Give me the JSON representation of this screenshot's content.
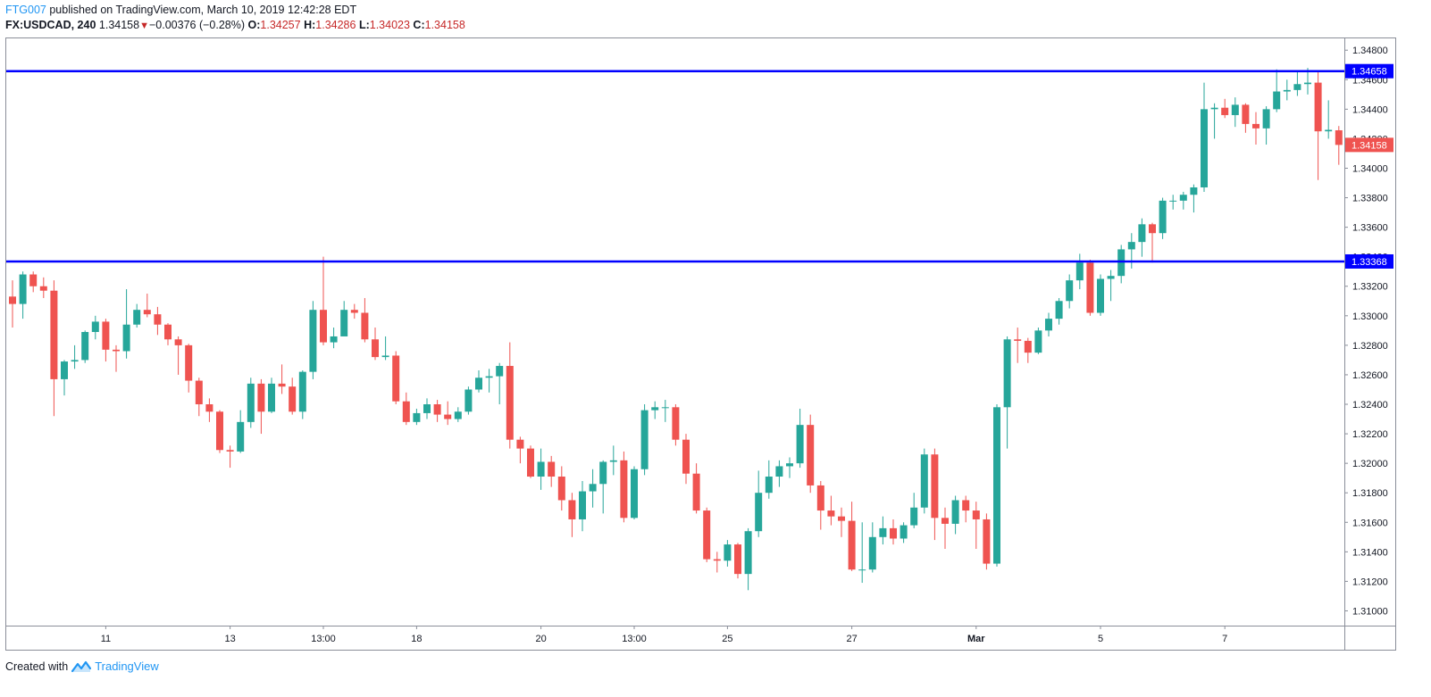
{
  "header": {
    "author": "FTG007",
    "published_text": "published on TradingView.com, March 10, 2019 12:42:28 EDT",
    "symbol": "FX:USDCAD, 240",
    "last": "1.34158",
    "change": "−0.00376 (−0.28%)",
    "o_label": "O:",
    "o_value": "1.34257",
    "h_label": "H:",
    "h_value": "1.34286",
    "l_label": "L:",
    "l_value": "1.34023",
    "c_label": "C:",
    "c_value": "1.34158"
  },
  "footer": {
    "created_text": "Created with",
    "brand": "TradingView"
  },
  "colors": {
    "up": "#26a69a",
    "down": "#ef5350",
    "level_line": "#0000ff",
    "text": "#131722"
  },
  "chart_data": {
    "type": "candlestick",
    "symbol": "FX:USDCAD",
    "interval": "240",
    "ylim": [
      1.309,
      1.3488
    ],
    "y_ticks": [
      "1.34800",
      "1.34600",
      "1.34400",
      "1.34200",
      "1.34000",
      "1.33800",
      "1.33600",
      "1.33400",
      "1.33200",
      "1.33000",
      "1.32800",
      "1.32600",
      "1.32400",
      "1.32200",
      "1.32000",
      "1.31800",
      "1.31600",
      "1.31400",
      "1.31200",
      "1.31000"
    ],
    "x_ticks": [
      {
        "label": "11",
        "index": 9
      },
      {
        "label": "13",
        "index": 21
      },
      {
        "label": "13:00",
        "index": 30
      },
      {
        "label": "18",
        "index": 39
      },
      {
        "label": "20",
        "index": 51
      },
      {
        "label": "13:00",
        "index": 60
      },
      {
        "label": "25",
        "index": 69
      },
      {
        "label": "27",
        "index": 81
      },
      {
        "label": "Mar",
        "index": 93,
        "bold": true
      },
      {
        "label": "5",
        "index": 105
      },
      {
        "label": "7",
        "index": 117
      }
    ],
    "horizontal_levels": [
      {
        "value": 1.34658,
        "label": "1.34658"
      },
      {
        "value": 1.33368,
        "label": "1.33368"
      }
    ],
    "last_price": {
      "value": 1.34158,
      "label": "1.34158"
    },
    "candles": [
      [
        1.3313,
        1.3308,
        1.3324,
        1.3292
      ],
      [
        1.3308,
        1.3328,
        1.333,
        1.3298
      ],
      [
        1.3328,
        1.332,
        1.333,
        1.3316
      ],
      [
        1.332,
        1.3317,
        1.3326,
        1.3312
      ],
      [
        1.3317,
        1.3257,
        1.3324,
        1.3232
      ],
      [
        1.3257,
        1.3269,
        1.327,
        1.3246
      ],
      [
        1.3269,
        1.327,
        1.328,
        1.3264
      ],
      [
        1.327,
        1.3289,
        1.329,
        1.3268
      ],
      [
        1.3289,
        1.3296,
        1.33,
        1.3284
      ],
      [
        1.3296,
        1.3277,
        1.3298,
        1.3269
      ],
      [
        1.3277,
        1.3276,
        1.328,
        1.3262
      ],
      [
        1.3276,
        1.3294,
        1.3318,
        1.3271
      ],
      [
        1.3294,
        1.3304,
        1.3308,
        1.3292
      ],
      [
        1.3304,
        1.3301,
        1.3315,
        1.3299
      ],
      [
        1.3301,
        1.3294,
        1.3306,
        1.3287
      ],
      [
        1.3294,
        1.3284,
        1.3295,
        1.328
      ],
      [
        1.3284,
        1.328,
        1.3286,
        1.326
      ],
      [
        1.328,
        1.3256,
        1.3281,
        1.3248
      ],
      [
        1.3256,
        1.324,
        1.3258,
        1.3232
      ],
      [
        1.324,
        1.3235,
        1.3244,
        1.3228
      ],
      [
        1.3235,
        1.3209,
        1.3236,
        1.3207
      ],
      [
        1.3209,
        1.3208,
        1.3212,
        1.3197
      ],
      [
        1.3208,
        1.3228,
        1.3236,
        1.3207
      ],
      [
        1.3228,
        1.3254,
        1.3258,
        1.3224
      ],
      [
        1.3254,
        1.3235,
        1.3257,
        1.322
      ],
      [
        1.3235,
        1.3254,
        1.3258,
        1.3234
      ],
      [
        1.3254,
        1.3252,
        1.3267,
        1.3247
      ],
      [
        1.3252,
        1.3235,
        1.3258,
        1.3233
      ],
      [
        1.3235,
        1.3262,
        1.3263,
        1.323
      ],
      [
        1.3262,
        1.3304,
        1.331,
        1.3257
      ],
      [
        1.3304,
        1.3282,
        1.334,
        1.328
      ],
      [
        1.3282,
        1.3286,
        1.3292,
        1.3278
      ],
      [
        1.3286,
        1.3304,
        1.331,
        1.3292
      ],
      [
        1.3304,
        1.3302,
        1.3308,
        1.3298
      ],
      [
        1.3302,
        1.3284,
        1.3312,
        1.3282
      ],
      [
        1.3284,
        1.3272,
        1.3292,
        1.327
      ],
      [
        1.3272,
        1.3273,
        1.3286,
        1.327
      ],
      [
        1.3273,
        1.3242,
        1.3276,
        1.324
      ],
      [
        1.3242,
        1.3228,
        1.3248,
        1.3226
      ],
      [
        1.3228,
        1.3234,
        1.3237,
        1.3226
      ],
      [
        1.3234,
        1.324,
        1.3244,
        1.323
      ],
      [
        1.324,
        1.3233,
        1.3243,
        1.3228
      ],
      [
        1.3233,
        1.323,
        1.3242,
        1.3226
      ],
      [
        1.323,
        1.3235,
        1.3238,
        1.3228
      ],
      [
        1.3235,
        1.325,
        1.3252,
        1.3233
      ],
      [
        1.325,
        1.3258,
        1.3263,
        1.3248
      ],
      [
        1.3258,
        1.3259,
        1.3264,
        1.3248
      ],
      [
        1.3259,
        1.3266,
        1.3268,
        1.324
      ],
      [
        1.3266,
        1.3216,
        1.3282,
        1.321
      ],
      [
        1.3216,
        1.321,
        1.3218,
        1.32
      ],
      [
        1.321,
        1.3191,
        1.3212,
        1.319
      ],
      [
        1.3191,
        1.3201,
        1.321,
        1.3182
      ],
      [
        1.3201,
        1.3191,
        1.3205,
        1.3184
      ],
      [
        1.3191,
        1.3175,
        1.3198,
        1.3168
      ],
      [
        1.3175,
        1.3162,
        1.318,
        1.315
      ],
      [
        1.3162,
        1.3181,
        1.3188,
        1.3154
      ],
      [
        1.3181,
        1.3186,
        1.3196,
        1.317
      ],
      [
        1.3186,
        1.3201,
        1.3202,
        1.3166
      ],
      [
        1.3201,
        1.3202,
        1.3212,
        1.3192
      ],
      [
        1.3202,
        1.3163,
        1.3208,
        1.316
      ],
      [
        1.3163,
        1.3196,
        1.3198,
        1.3162
      ],
      [
        1.3196,
        1.3236,
        1.324,
        1.3192
      ],
      [
        1.3236,
        1.3238,
        1.3242,
        1.323
      ],
      [
        1.3238,
        1.3238,
        1.3243,
        1.3228
      ],
      [
        1.3238,
        1.3216,
        1.324,
        1.3212
      ],
      [
        1.3216,
        1.3193,
        1.322,
        1.3186
      ],
      [
        1.3193,
        1.3168,
        1.32,
        1.3166
      ],
      [
        1.3168,
        1.3135,
        1.317,
        1.3133
      ],
      [
        1.3135,
        1.3134,
        1.314,
        1.3126
      ],
      [
        1.3134,
        1.3145,
        1.3148,
        1.313
      ],
      [
        1.3145,
        1.3125,
        1.3146,
        1.3122
      ],
      [
        1.3125,
        1.3154,
        1.3156,
        1.3114
      ],
      [
        1.3154,
        1.318,
        1.3195,
        1.315
      ],
      [
        1.318,
        1.3191,
        1.3202,
        1.3176
      ],
      [
        1.3191,
        1.3198,
        1.3202,
        1.3184
      ],
      [
        1.3198,
        1.32,
        1.3204,
        1.319
      ],
      [
        1.32,
        1.3226,
        1.3237,
        1.3197
      ],
      [
        1.3226,
        1.3185,
        1.3233,
        1.318
      ],
      [
        1.3185,
        1.3168,
        1.3188,
        1.3155
      ],
      [
        1.3168,
        1.3164,
        1.3178,
        1.3158
      ],
      [
        1.3164,
        1.3161,
        1.317,
        1.315
      ],
      [
        1.3161,
        1.3128,
        1.3174,
        1.3127
      ],
      [
        1.3128,
        1.3128,
        1.316,
        1.3119
      ],
      [
        1.3128,
        1.315,
        1.316,
        1.3126
      ],
      [
        1.315,
        1.3156,
        1.3164,
        1.3145
      ],
      [
        1.3156,
        1.3149,
        1.3162,
        1.3145
      ],
      [
        1.3149,
        1.3158,
        1.316,
        1.3146
      ],
      [
        1.3158,
        1.317,
        1.318,
        1.3156
      ],
      [
        1.317,
        1.3206,
        1.321,
        1.3166
      ],
      [
        1.3206,
        1.3163,
        1.321,
        1.3148
      ],
      [
        1.3163,
        1.3159,
        1.317,
        1.3142
      ],
      [
        1.3159,
        1.3175,
        1.3178,
        1.3152
      ],
      [
        1.3175,
        1.3168,
        1.3178,
        1.316
      ],
      [
        1.3168,
        1.3162,
        1.3174,
        1.3142
      ],
      [
        1.3162,
        1.3132,
        1.3166,
        1.3128
      ],
      [
        1.3132,
        1.3238,
        1.324,
        1.313
      ],
      [
        1.3238,
        1.3284,
        1.3286,
        1.321
      ],
      [
        1.3284,
        1.3283,
        1.3292,
        1.3268
      ],
      [
        1.3283,
        1.3275,
        1.3285,
        1.3268
      ],
      [
        1.3275,
        1.329,
        1.3292,
        1.3274
      ],
      [
        1.329,
        1.3298,
        1.3302,
        1.3286
      ],
      [
        1.3298,
        1.331,
        1.3312,
        1.3294
      ],
      [
        1.331,
        1.3324,
        1.3328,
        1.3305
      ],
      [
        1.3324,
        1.3336,
        1.3342,
        1.3318
      ],
      [
        1.3336,
        1.3302,
        1.3338,
        1.33
      ],
      [
        1.3302,
        1.3325,
        1.3328,
        1.33
      ],
      [
        1.3325,
        1.3327,
        1.3331,
        1.331
      ],
      [
        1.3327,
        1.3345,
        1.3348,
        1.3322
      ],
      [
        1.3345,
        1.335,
        1.3356,
        1.3332
      ],
      [
        1.335,
        1.3362,
        1.3366,
        1.334
      ],
      [
        1.3362,
        1.3356,
        1.3363,
        1.3336
      ],
      [
        1.3356,
        1.3378,
        1.338,
        1.3352
      ],
      [
        1.3378,
        1.3378,
        1.3382,
        1.3372
      ],
      [
        1.3378,
        1.3382,
        1.3384,
        1.3372
      ],
      [
        1.3382,
        1.3387,
        1.3389,
        1.337
      ],
      [
        1.3387,
        1.344,
        1.3458,
        1.3384
      ],
      [
        1.344,
        1.3441,
        1.3444,
        1.342
      ],
      [
        1.3441,
        1.3436,
        1.3447,
        1.3434
      ],
      [
        1.3436,
        1.3443,
        1.3448,
        1.3428
      ],
      [
        1.3443,
        1.343,
        1.3444,
        1.3424
      ],
      [
        1.343,
        1.3427,
        1.3438,
        1.3416
      ],
      [
        1.3427,
        1.344,
        1.3442,
        1.3416
      ],
      [
        1.344,
        1.3452,
        1.3467,
        1.3438
      ],
      [
        1.3452,
        1.3453,
        1.346,
        1.3446
      ],
      [
        1.3453,
        1.3457,
        1.3466,
        1.3449
      ],
      [
        1.3457,
        1.3458,
        1.3468,
        1.345
      ],
      [
        1.3458,
        1.3425,
        1.3466,
        1.3392
      ],
      [
        1.3425,
        1.3426,
        1.3446,
        1.342
      ],
      [
        1.34257,
        1.34158,
        1.34286,
        1.34023
      ]
    ]
  }
}
